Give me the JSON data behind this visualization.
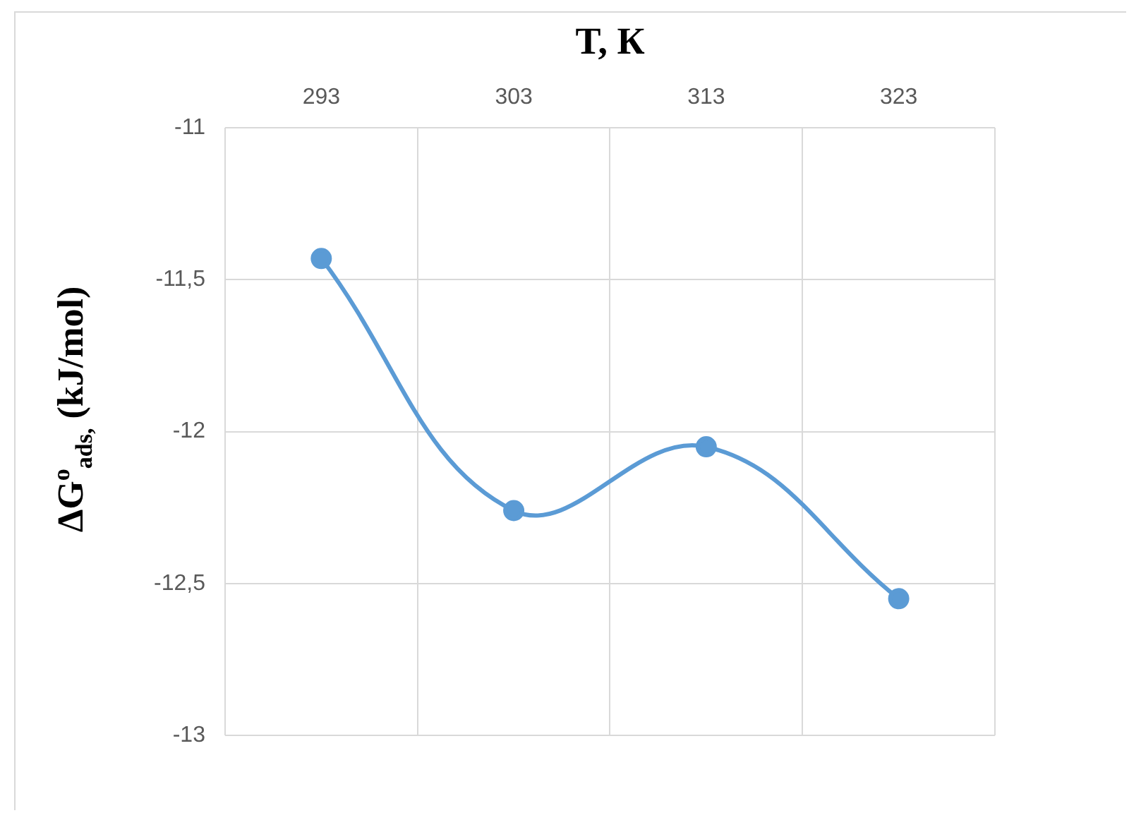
{
  "chart_data": {
    "type": "line",
    "xlabel": "T, К",
    "ylabel": "ΔG$^{o}$$_{ads,}$ (kJ/mol)",
    "categories": [
      "293",
      "303",
      "313",
      "323"
    ],
    "series": [
      {
        "color": "#5b9bd5",
        "values": [
          -11.43,
          -12.26,
          -12.05,
          -12.55
        ]
      }
    ],
    "ylim": [
      -13,
      -11
    ],
    "yticks": [
      -11,
      {
        "value": -11.5,
        "label": "-11,5"
      },
      -12,
      {
        "value": -12.5,
        "label": "-12,5"
      },
      -13
    ],
    "grid": true,
    "legend": false,
    "marker": "circle",
    "line_style": "solid"
  }
}
